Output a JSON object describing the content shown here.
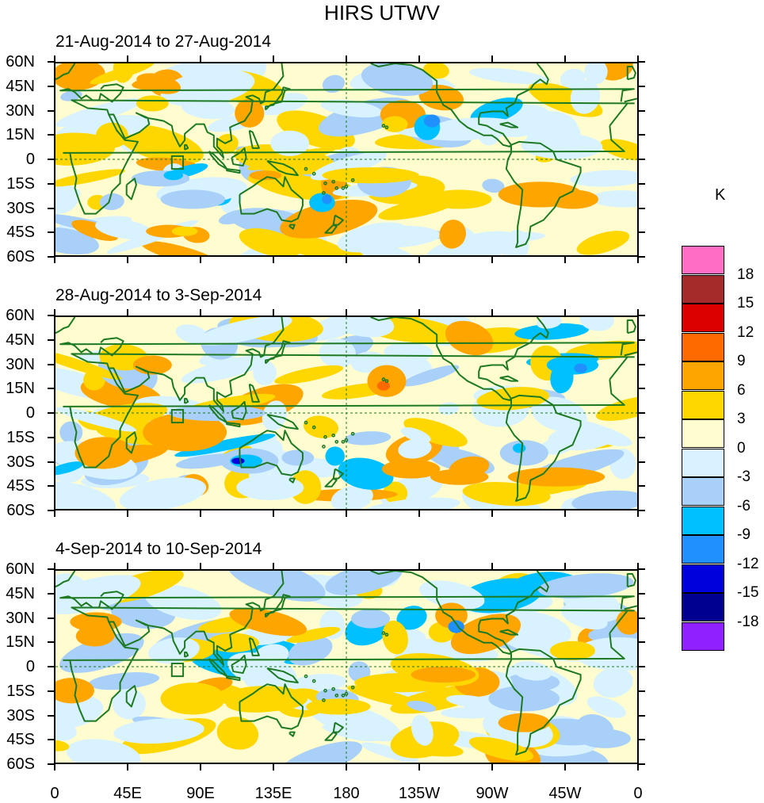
{
  "title": "HIRS UTWV",
  "panels": [
    {
      "label": "21-Aug-2014 to 27-Aug-2014"
    },
    {
      "label": "28-Aug-2014 to 3-Sep-2014"
    },
    {
      "label": "4-Sep-2014 to 10-Sep-2014"
    }
  ],
  "lat_ticks": [
    "60N",
    "45N",
    "30N",
    "15N",
    "0",
    "15S",
    "30S",
    "45S",
    "60S"
  ],
  "lon_ticks": [
    "0",
    "45E",
    "90E",
    "135E",
    "180",
    "135W",
    "90W",
    "45W",
    "0"
  ],
  "colorbar": {
    "unit": "K",
    "levels": [
      "18",
      "15",
      "12",
      "9",
      "6",
      "3",
      "0",
      "-3",
      "-6",
      "-9",
      "-12",
      "-15",
      "-18"
    ],
    "colors": [
      "#ff6ec4",
      "#a52a2a",
      "#dd0000",
      "#ff6a00",
      "#ffa500",
      "#ffd700",
      "#fffcd0",
      "#d8f3ff",
      "#a8d0f8",
      "#00c0ff",
      "#2090ff",
      "#0000dd",
      "#000090",
      "#9020ff"
    ]
  },
  "colors": {
    "coast": "#1d7a22",
    "frame": "#000000"
  }
}
